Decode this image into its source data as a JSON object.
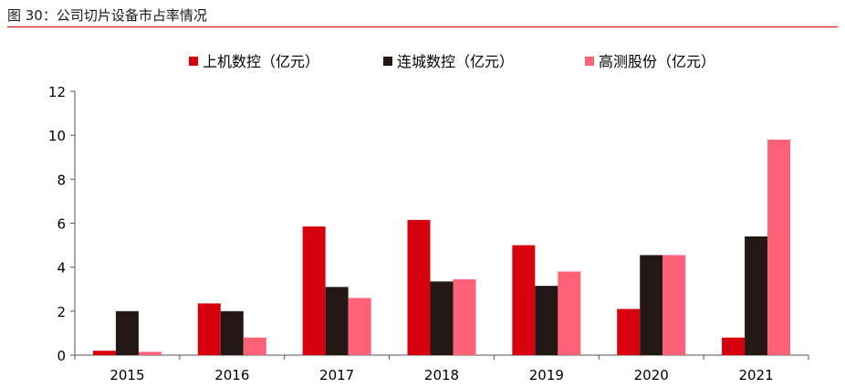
{
  "figure_title": "图 30：公司切片设备市占率情况",
  "chart_data": {
    "type": "bar",
    "categories": [
      "2015",
      "2016",
      "2017",
      "2018",
      "2019",
      "2020",
      "2021"
    ],
    "series": [
      {
        "name": "上机数控（亿元）",
        "color": "#d6000f",
        "values": [
          0.2,
          2.35,
          5.85,
          6.15,
          5.0,
          2.1,
          0.8
        ]
      },
      {
        "name": "连城数控（亿元）",
        "color": "#231815",
        "values": [
          2.0,
          2.0,
          3.1,
          3.35,
          3.15,
          4.55,
          5.4
        ]
      },
      {
        "name": "高测股份（亿元）",
        "color": "#ff6178",
        "values": [
          0.15,
          0.8,
          2.6,
          3.45,
          3.8,
          4.55,
          9.8
        ]
      }
    ],
    "ylim": [
      0,
      12
    ],
    "yticks": [
      0,
      2,
      4,
      6,
      8,
      10,
      12
    ],
    "legend_position": "top-center",
    "grid": false
  }
}
